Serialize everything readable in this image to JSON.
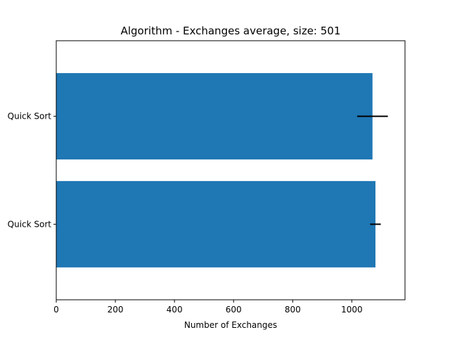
{
  "chart_data": {
    "type": "bar",
    "orientation": "horizontal",
    "title": "Algorithm - Exchanges average, size: 501",
    "xlabel": "Number of Exchanges",
    "ylabel": "",
    "xlim": [
      0,
      1180
    ],
    "xticks": [
      0,
      200,
      400,
      600,
      800,
      1000
    ],
    "grid": false,
    "categories": [
      "Quick Sort",
      "Quick Sort"
    ],
    "values": [
      1080,
      1070
    ],
    "error": [
      18,
      52
    ],
    "colors": {
      "bar": "#1f77b4",
      "error_bar": "#000000"
    }
  }
}
